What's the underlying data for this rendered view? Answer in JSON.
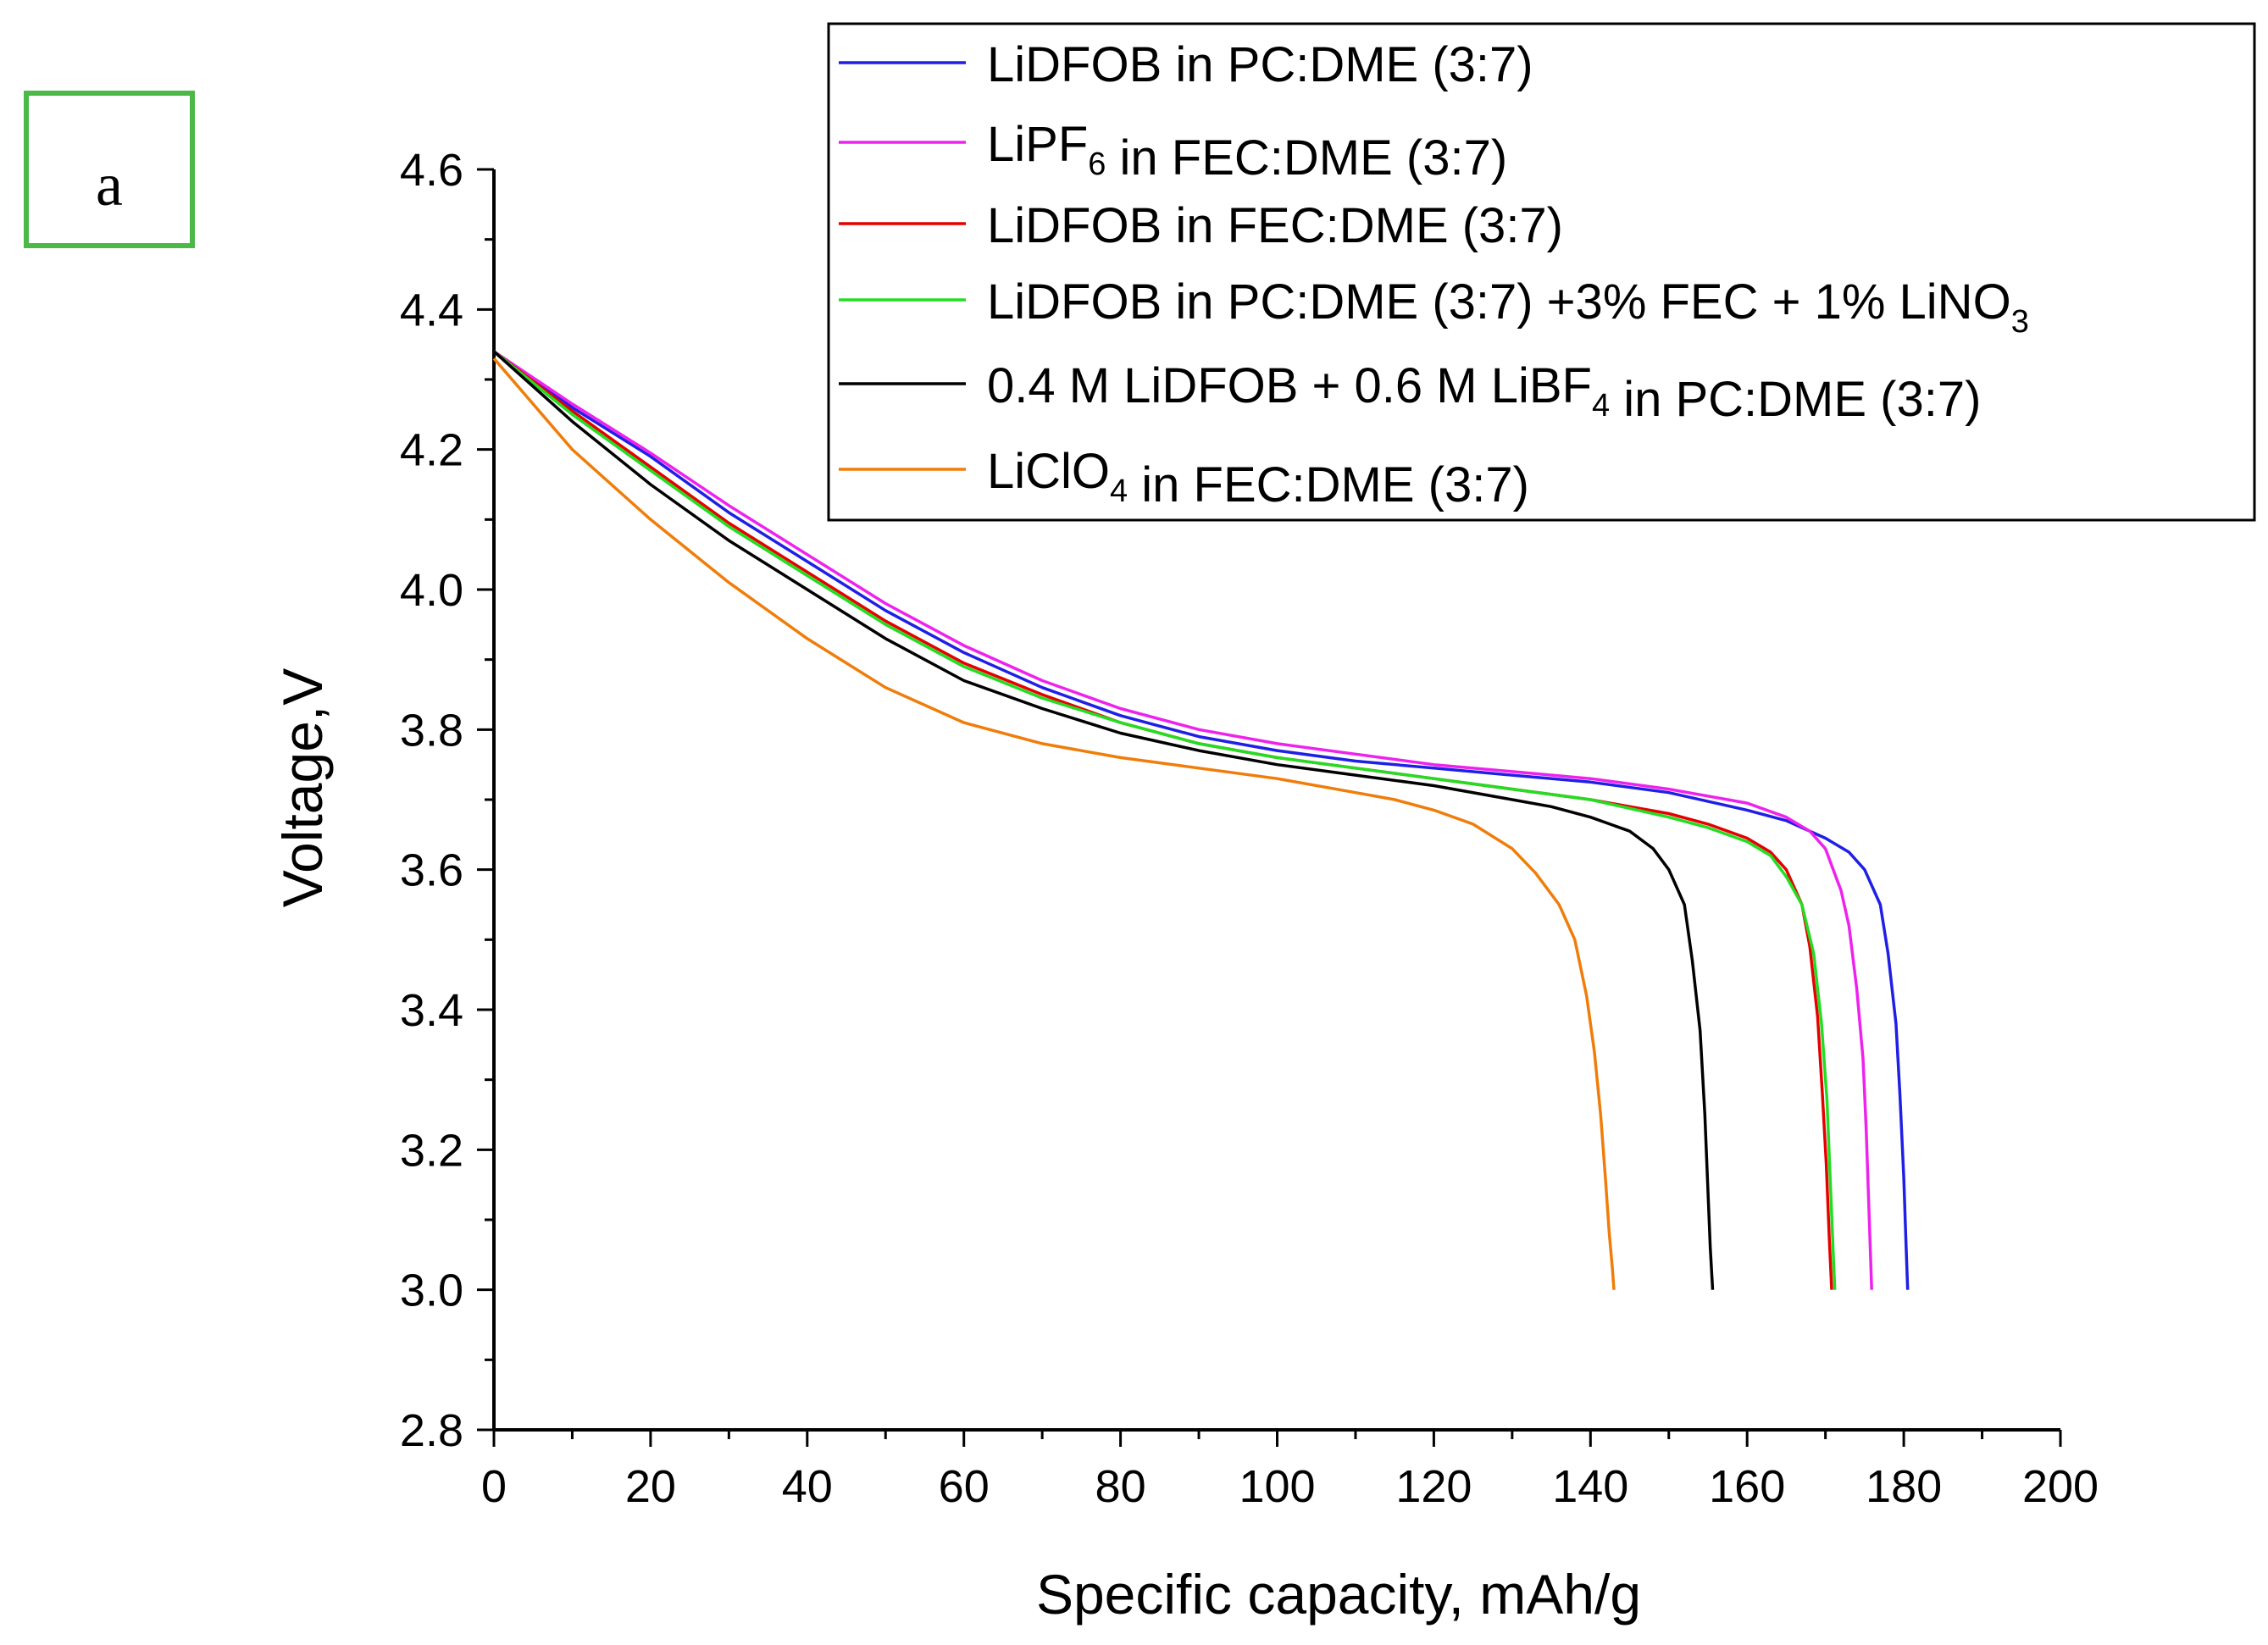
{
  "panel_label": "a",
  "colors": {
    "panel_box": "#4cb848",
    "axis": "#000000",
    "background": "#ffffff"
  },
  "chart_data": {
    "type": "line",
    "title": "",
    "xlabel": "Specific capacity, mAh/g",
    "ylabel": "Voltage,V",
    "xlim": [
      0,
      200
    ],
    "ylim": [
      2.8,
      4.6
    ],
    "xticks": [
      0,
      20,
      40,
      60,
      80,
      100,
      120,
      140,
      160,
      180,
      200
    ],
    "xtick_labels": [
      "0",
      "20",
      "40",
      "60",
      "80",
      "100",
      "120",
      "140",
      "160",
      "180",
      "200"
    ],
    "yticks": [
      2.8,
      3.0,
      3.2,
      3.4,
      3.6,
      3.8,
      4.0,
      4.2,
      4.4,
      4.6
    ],
    "ytick_labels": [
      "2.8",
      "3.0",
      "3.2",
      "3.4",
      "3.6",
      "3.8",
      "4.0",
      "4.2",
      "4.4",
      "4.6"
    ],
    "grid": false,
    "legend_position": "top-right",
    "series": [
      {
        "name": "LiDFOB in PC:DME (3:7)",
        "legend_parts": [
          {
            "t": "LiDFOB in PC:DME (3:7)"
          }
        ],
        "color": "#1f1fe6",
        "x": [
          0,
          10,
          20,
          30,
          40,
          50,
          60,
          70,
          80,
          90,
          100,
          110,
          120,
          130,
          140,
          150,
          160,
          165,
          170,
          173,
          175,
          177,
          178,
          179,
          179.5,
          180,
          180.3,
          180.5
        ],
        "y": [
          4.34,
          4.26,
          4.19,
          4.11,
          4.04,
          3.97,
          3.91,
          3.86,
          3.82,
          3.79,
          3.77,
          3.755,
          3.745,
          3.735,
          3.725,
          3.71,
          3.685,
          3.67,
          3.645,
          3.625,
          3.6,
          3.55,
          3.48,
          3.38,
          3.28,
          3.16,
          3.06,
          3.0
        ]
      },
      {
        "name": "LiPF6 in FEC:DME (3:7)",
        "legend_parts": [
          {
            "t": "LiPF"
          },
          {
            "t": "6",
            "sub": true
          },
          {
            "t": " in FEC:DME (3:7)"
          }
        ],
        "color": "#ee22ee",
        "x": [
          0,
          10,
          20,
          30,
          40,
          50,
          60,
          70,
          80,
          90,
          100,
          110,
          120,
          130,
          140,
          150,
          160,
          165,
          168,
          170,
          172,
          173,
          174,
          174.8,
          175.2,
          175.6,
          175.9
        ],
        "y": [
          4.34,
          4.265,
          4.195,
          4.12,
          4.05,
          3.98,
          3.92,
          3.87,
          3.83,
          3.8,
          3.78,
          3.765,
          3.75,
          3.74,
          3.73,
          3.715,
          3.695,
          3.675,
          3.655,
          3.63,
          3.57,
          3.52,
          3.43,
          3.33,
          3.23,
          3.1,
          3.0
        ]
      },
      {
        "name": "LiDFOB in FEC:DME (3:7)",
        "legend_parts": [
          {
            "t": "LiDFOB in FEC:DME (3:7)"
          }
        ],
        "color": "#e60000",
        "x": [
          0,
          10,
          20,
          30,
          40,
          50,
          60,
          70,
          80,
          90,
          100,
          110,
          120,
          130,
          140,
          150,
          155,
          160,
          163,
          165,
          167,
          168,
          169,
          169.6,
          170.1,
          170.5,
          170.8
        ],
        "y": [
          4.34,
          4.255,
          4.175,
          4.095,
          4.025,
          3.955,
          3.895,
          3.85,
          3.81,
          3.78,
          3.76,
          3.745,
          3.73,
          3.715,
          3.7,
          3.68,
          3.665,
          3.645,
          3.625,
          3.6,
          3.55,
          3.49,
          3.39,
          3.28,
          3.18,
          3.07,
          3.0
        ]
      },
      {
        "name": "LiDFOB in PC:DME (3:7) +3% FEC + 1% LiNO3",
        "legend_parts": [
          {
            "t": "LiDFOB in PC:DME (3:7) +3% FEC + 1% LiNO"
          },
          {
            "t": "3",
            "sub": true
          }
        ],
        "color": "#22dd22",
        "x": [
          0,
          10,
          20,
          30,
          40,
          50,
          60,
          70,
          80,
          90,
          100,
          110,
          120,
          130,
          140,
          150,
          155,
          160,
          163,
          165,
          167,
          168.5,
          169.5,
          170.2,
          170.6,
          171,
          171.2
        ],
        "y": [
          4.34,
          4.25,
          4.17,
          4.09,
          4.02,
          3.95,
          3.89,
          3.845,
          3.81,
          3.78,
          3.76,
          3.745,
          3.73,
          3.715,
          3.7,
          3.675,
          3.66,
          3.64,
          3.62,
          3.59,
          3.55,
          3.48,
          3.38,
          3.27,
          3.16,
          3.05,
          3.0
        ]
      },
      {
        "name": "0.4 M LiDFOB + 0.6 M LiBF4 in PC:DME (3:7)",
        "legend_parts": [
          {
            "t": "0.4 M LiDFOB + 0.6 M LiBF"
          },
          {
            "t": "4",
            "sub": true
          },
          {
            "t": " in PC:DME (3:7)"
          }
        ],
        "color": "#000000",
        "x": [
          0,
          10,
          20,
          30,
          40,
          50,
          60,
          70,
          80,
          90,
          100,
          110,
          120,
          130,
          135,
          140,
          145,
          148,
          150,
          152,
          153,
          154,
          154.6,
          155,
          155.3,
          155.6
        ],
        "y": [
          4.34,
          4.24,
          4.15,
          4.07,
          4.0,
          3.93,
          3.87,
          3.83,
          3.795,
          3.77,
          3.75,
          3.735,
          3.72,
          3.7,
          3.69,
          3.675,
          3.655,
          3.63,
          3.6,
          3.55,
          3.47,
          3.37,
          3.25,
          3.14,
          3.06,
          3.0
        ]
      },
      {
        "name": "LiClO4 in FEC:DME (3:7)",
        "legend_parts": [
          {
            "t": "LiClO"
          },
          {
            "t": "4",
            "sub": true
          },
          {
            "t": " in FEC:DME (3:7)"
          }
        ],
        "color": "#f07d0a",
        "x": [
          0,
          10,
          20,
          30,
          40,
          50,
          60,
          70,
          80,
          90,
          100,
          110,
          115,
          120,
          125,
          130,
          133,
          136,
          138,
          139.5,
          140.5,
          141.3,
          141.9,
          142.4,
          142.8,
          143
        ],
        "y": [
          4.33,
          4.2,
          4.1,
          4.01,
          3.93,
          3.86,
          3.81,
          3.78,
          3.76,
          3.745,
          3.73,
          3.71,
          3.7,
          3.685,
          3.665,
          3.63,
          3.595,
          3.55,
          3.5,
          3.42,
          3.34,
          3.25,
          3.16,
          3.08,
          3.03,
          3.0
        ]
      }
    ]
  }
}
